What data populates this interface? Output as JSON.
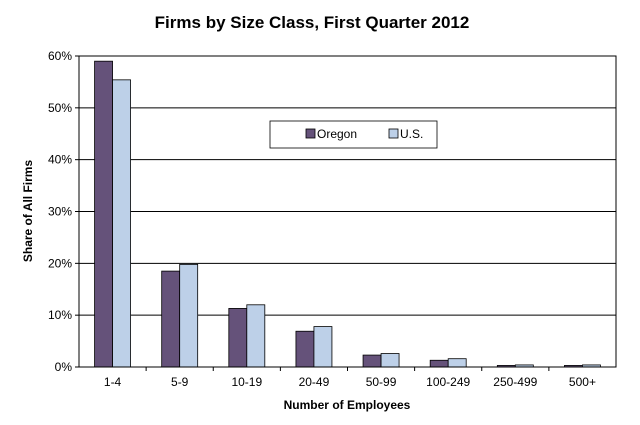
{
  "chart_data": {
    "type": "bar",
    "title": "Firms by Size Class, First Quarter 2012",
    "xlabel": "Number of Employees",
    "ylabel": "Share of All Firms",
    "categories": [
      "1-4",
      "5-9",
      "10-19",
      "20-49",
      "50-99",
      "100-249",
      "250-499",
      "500+"
    ],
    "series": [
      {
        "name": "Oregon",
        "color": "#65527a",
        "values": [
          59.0,
          18.5,
          11.3,
          6.9,
          2.3,
          1.3,
          0.3,
          0.3
        ]
      },
      {
        "name": "U.S.",
        "color": "#bdd0e8",
        "values": [
          55.4,
          19.8,
          12.0,
          7.8,
          2.6,
          1.6,
          0.4,
          0.4
        ]
      }
    ],
    "ylim": [
      0,
      60
    ],
    "yticks": [
      0,
      10,
      20,
      30,
      40,
      50,
      60
    ],
    "ytick_labels": [
      "0%",
      "10%",
      "20%",
      "30%",
      "40%",
      "50%",
      "60%"
    ],
    "grid": true,
    "legend_placement": "upper-center"
  }
}
